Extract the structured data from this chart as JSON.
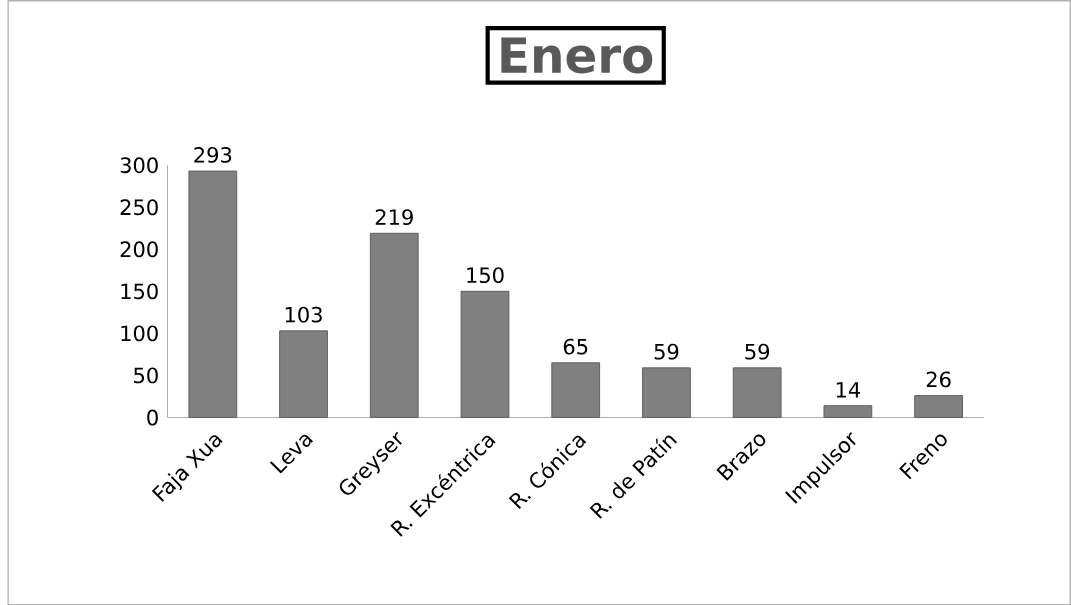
{
  "chart_data": {
    "type": "bar",
    "title": "Enero",
    "categories": [
      "Faja Xua",
      "Leva",
      "Greyser",
      "R. Excéntrica",
      "R. Cónica",
      "R. de Patín",
      "Brazo",
      "Impulsor",
      "Freno"
    ],
    "values": [
      293,
      103,
      219,
      150,
      65,
      59,
      59,
      14,
      26
    ],
    "color": "#808080",
    "ylim": [
      0,
      300
    ],
    "yticks": [
      0,
      50,
      100,
      150,
      200,
      250,
      300
    ],
    "data_labels": true
  }
}
